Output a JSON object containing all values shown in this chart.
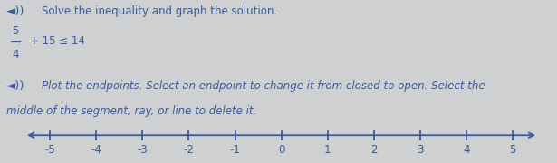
{
  "bg_color": "#cfd0d1",
  "text_color": "#3a5a9b",
  "axis_color": "#3a5a9b",
  "line1": "◄») 🔊 Solve the inequality and graph the solution.",
  "line1_plain": "Solve the inequality and graph the solution.",
  "inequality_numerator": "5",
  "inequality_denominator": "4",
  "inequality_rest": "+ 15 ≤ 14",
  "line3_plain": "Plot the endpoints. Select an endpoint to change it from closed to open. Select the",
  "line4_plain": "middle of the segment, ray, or line to delete it.",
  "number_line_min": -5,
  "number_line_max": 5,
  "tick_positions": [
    -5,
    -4,
    -3,
    -2,
    -1,
    0,
    1,
    2,
    3,
    4,
    5
  ],
  "tick_labels": [
    "-5",
    "-4",
    "-3",
    "-2",
    "-1",
    "0",
    "1",
    "2",
    "3",
    "4",
    "5"
  ],
  "font_size_text": 8.5,
  "font_size_ineq": 10,
  "font_size_ticks": 8.5,
  "icon_color": "#3a5a9b"
}
